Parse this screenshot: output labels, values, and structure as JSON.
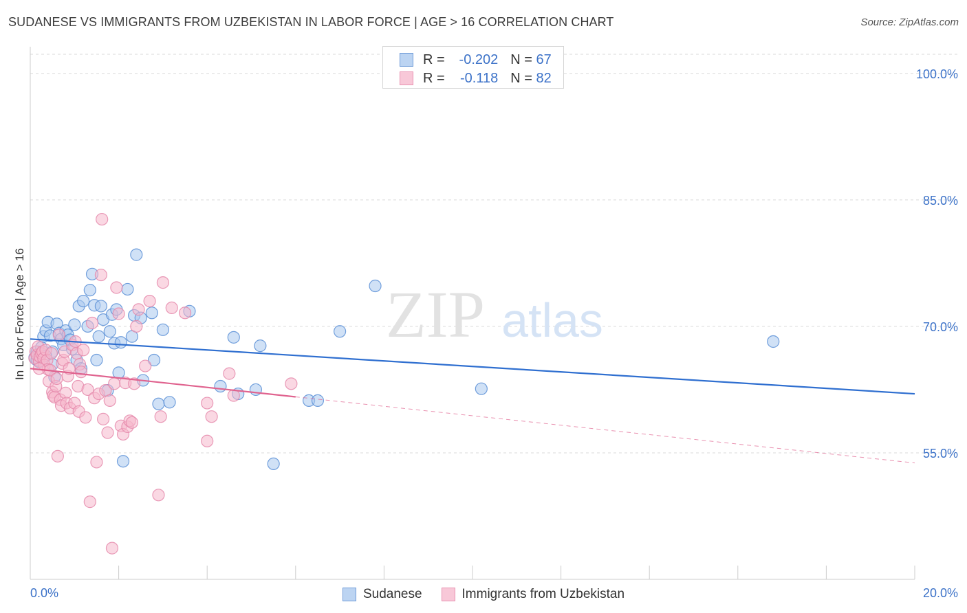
{
  "header": {
    "title": "SUDANESE VS IMMIGRANTS FROM UZBEKISTAN IN LABOR FORCE | AGE > 16 CORRELATION CHART",
    "source": "Source: ZipAtlas.com"
  },
  "watermark": {
    "zip": "ZIP",
    "atlas": "atlas"
  },
  "legend": {
    "rows": [
      {
        "r_label": "R =",
        "r_value": "-0.202",
        "n_label": "N =",
        "n_value": "67"
      },
      {
        "r_label": "R =",
        "r_value": "-0.118",
        "n_label": "N =",
        "n_value": "82"
      }
    ]
  },
  "colors": {
    "blue_fill": "#a9c8ef",
    "blue_stroke": "#5b8fd6",
    "blue_line": "#2f6fd0",
    "pink_fill": "#f6b8cc",
    "pink_stroke": "#e58aab",
    "pink_line": "#e0638f",
    "axis_text": "#3c72c8",
    "grid": "#d9d9d9"
  },
  "chart_data": {
    "type": "scatter",
    "title": "SUDANESE VS IMMIGRANTS FROM UZBEKISTAN IN LABOR FORCE | AGE > 16 CORRELATION CHART",
    "xlabel": "",
    "ylabel": "In Labor Force | Age > 16",
    "xlim": [
      0,
      20
    ],
    "ylim": [
      40,
      103
    ],
    "x_tick_labels": [
      "0.0%",
      "20.0%"
    ],
    "y_ticks": [
      55,
      70,
      85,
      100
    ],
    "y_tick_labels": [
      "55.0%",
      "70.0%",
      "85.0%",
      "100.0%"
    ],
    "grid": true,
    "series": [
      {
        "name": "Sudanese",
        "r": -0.202,
        "n": 67,
        "trend": {
          "x0": 0,
          "y0": 68.5,
          "x1": 20,
          "y1": 62.0,
          "dashed_from": null
        },
        "points": [
          [
            0.1,
            66.3
          ],
          [
            0.15,
            67.0
          ],
          [
            0.2,
            66.8
          ],
          [
            0.25,
            67.5
          ],
          [
            0.3,
            68.8
          ],
          [
            0.35,
            69.5
          ],
          [
            0.4,
            70.5
          ],
          [
            0.45,
            68.9
          ],
          [
            0.5,
            67.0
          ],
          [
            0.55,
            64.0
          ],
          [
            0.6,
            70.3
          ],
          [
            0.65,
            69.2
          ],
          [
            0.7,
            68.5
          ],
          [
            0.75,
            67.8
          ],
          [
            0.8,
            69.5
          ],
          [
            0.85,
            69.0
          ],
          [
            0.9,
            68.4
          ],
          [
            0.95,
            67.3
          ],
          [
            1.0,
            70.2
          ],
          [
            1.05,
            66.0
          ],
          [
            1.1,
            72.4
          ],
          [
            1.15,
            65.0
          ],
          [
            1.2,
            73.0
          ],
          [
            1.3,
            70.0
          ],
          [
            1.35,
            74.3
          ],
          [
            1.4,
            76.2
          ],
          [
            1.45,
            72.5
          ],
          [
            1.5,
            66.0
          ],
          [
            1.55,
            68.8
          ],
          [
            1.6,
            72.4
          ],
          [
            1.65,
            70.8
          ],
          [
            1.75,
            62.4
          ],
          [
            1.8,
            69.4
          ],
          [
            1.85,
            71.4
          ],
          [
            1.9,
            68.0
          ],
          [
            1.95,
            72.0
          ],
          [
            2.0,
            64.5
          ],
          [
            2.05,
            68.1
          ],
          [
            2.1,
            54.0
          ],
          [
            2.2,
            74.4
          ],
          [
            2.3,
            68.8
          ],
          [
            2.35,
            71.3
          ],
          [
            2.4,
            78.5
          ],
          [
            2.5,
            71.0
          ],
          [
            2.55,
            63.6
          ],
          [
            2.75,
            71.6
          ],
          [
            2.8,
            66.0
          ],
          [
            2.9,
            60.8
          ],
          [
            3.0,
            69.6
          ],
          [
            3.15,
            61.0
          ],
          [
            3.6,
            71.8
          ],
          [
            4.3,
            62.9
          ],
          [
            4.6,
            68.7
          ],
          [
            4.7,
            62.0
          ],
          [
            5.1,
            62.5
          ],
          [
            5.2,
            67.7
          ],
          [
            5.5,
            53.7
          ],
          [
            6.3,
            61.2
          ],
          [
            6.5,
            61.2
          ],
          [
            7.0,
            69.4
          ],
          [
            7.8,
            74.8
          ],
          [
            10.2,
            62.6
          ],
          [
            16.8,
            68.2
          ],
          [
            0.2,
            65.8
          ],
          [
            0.35,
            66.5
          ],
          [
            0.5,
            65.5
          ],
          [
            0.15,
            66.0
          ]
        ]
      },
      {
        "name": "Immigrants from Uzbekistan",
        "r": -0.118,
        "n": 82,
        "trend": {
          "x0": 0,
          "y0": 65.0,
          "x1": 20,
          "y1": 53.8,
          "dashed_from": 6.0
        },
        "points": [
          [
            0.1,
            66.2
          ],
          [
            0.12,
            67.0
          ],
          [
            0.15,
            66.6
          ],
          [
            0.18,
            67.6
          ],
          [
            0.2,
            65.9
          ],
          [
            0.22,
            66.4
          ],
          [
            0.25,
            66.8
          ],
          [
            0.28,
            67.0
          ],
          [
            0.3,
            66.2
          ],
          [
            0.32,
            65.4
          ],
          [
            0.35,
            67.2
          ],
          [
            0.38,
            66.0
          ],
          [
            0.4,
            64.9
          ],
          [
            0.42,
            63.5
          ],
          [
            0.45,
            64.8
          ],
          [
            0.48,
            66.8
          ],
          [
            0.5,
            62.2
          ],
          [
            0.52,
            61.8
          ],
          [
            0.55,
            61.6
          ],
          [
            0.58,
            62.9
          ],
          [
            0.6,
            63.8
          ],
          [
            0.62,
            54.6
          ],
          [
            0.65,
            69.0
          ],
          [
            0.68,
            61.3
          ],
          [
            0.7,
            60.6
          ],
          [
            0.72,
            65.6
          ],
          [
            0.75,
            66.0
          ],
          [
            0.78,
            67.0
          ],
          [
            0.8,
            62.1
          ],
          [
            0.82,
            60.9
          ],
          [
            0.85,
            64.1
          ],
          [
            0.88,
            65.0
          ],
          [
            0.9,
            60.3
          ],
          [
            0.95,
            67.8
          ],
          [
            1.0,
            60.9
          ],
          [
            1.02,
            68.2
          ],
          [
            1.05,
            66.8
          ],
          [
            1.08,
            62.9
          ],
          [
            1.1,
            59.9
          ],
          [
            1.12,
            65.5
          ],
          [
            1.15,
            64.6
          ],
          [
            1.2,
            67.2
          ],
          [
            1.25,
            59.2
          ],
          [
            1.3,
            62.5
          ],
          [
            1.35,
            49.2
          ],
          [
            1.4,
            70.4
          ],
          [
            1.45,
            61.5
          ],
          [
            1.5,
            53.9
          ],
          [
            1.55,
            62.0
          ],
          [
            1.6,
            76.1
          ],
          [
            1.62,
            82.7
          ],
          [
            1.65,
            59.0
          ],
          [
            1.7,
            62.4
          ],
          [
            1.75,
            57.4
          ],
          [
            1.8,
            61.2
          ],
          [
            1.85,
            43.7
          ],
          [
            1.9,
            63.2
          ],
          [
            1.95,
            74.6
          ],
          [
            2.0,
            71.5
          ],
          [
            2.05,
            58.2
          ],
          [
            2.1,
            57.2
          ],
          [
            2.15,
            63.3
          ],
          [
            2.2,
            58.1
          ],
          [
            2.25,
            58.8
          ],
          [
            2.3,
            58.6
          ],
          [
            2.35,
            63.2
          ],
          [
            2.4,
            70.0
          ],
          [
            2.45,
            72.0
          ],
          [
            2.6,
            65.3
          ],
          [
            2.7,
            73.0
          ],
          [
            2.9,
            50.0
          ],
          [
            2.95,
            59.3
          ],
          [
            3.0,
            75.2
          ],
          [
            3.2,
            72.2
          ],
          [
            3.5,
            71.6
          ],
          [
            4.0,
            60.9
          ],
          [
            4.1,
            59.3
          ],
          [
            4.0,
            56.4
          ],
          [
            4.5,
            64.4
          ],
          [
            4.6,
            61.8
          ],
          [
            5.9,
            63.2
          ],
          [
            0.2,
            65.0
          ]
        ]
      }
    ]
  }
}
